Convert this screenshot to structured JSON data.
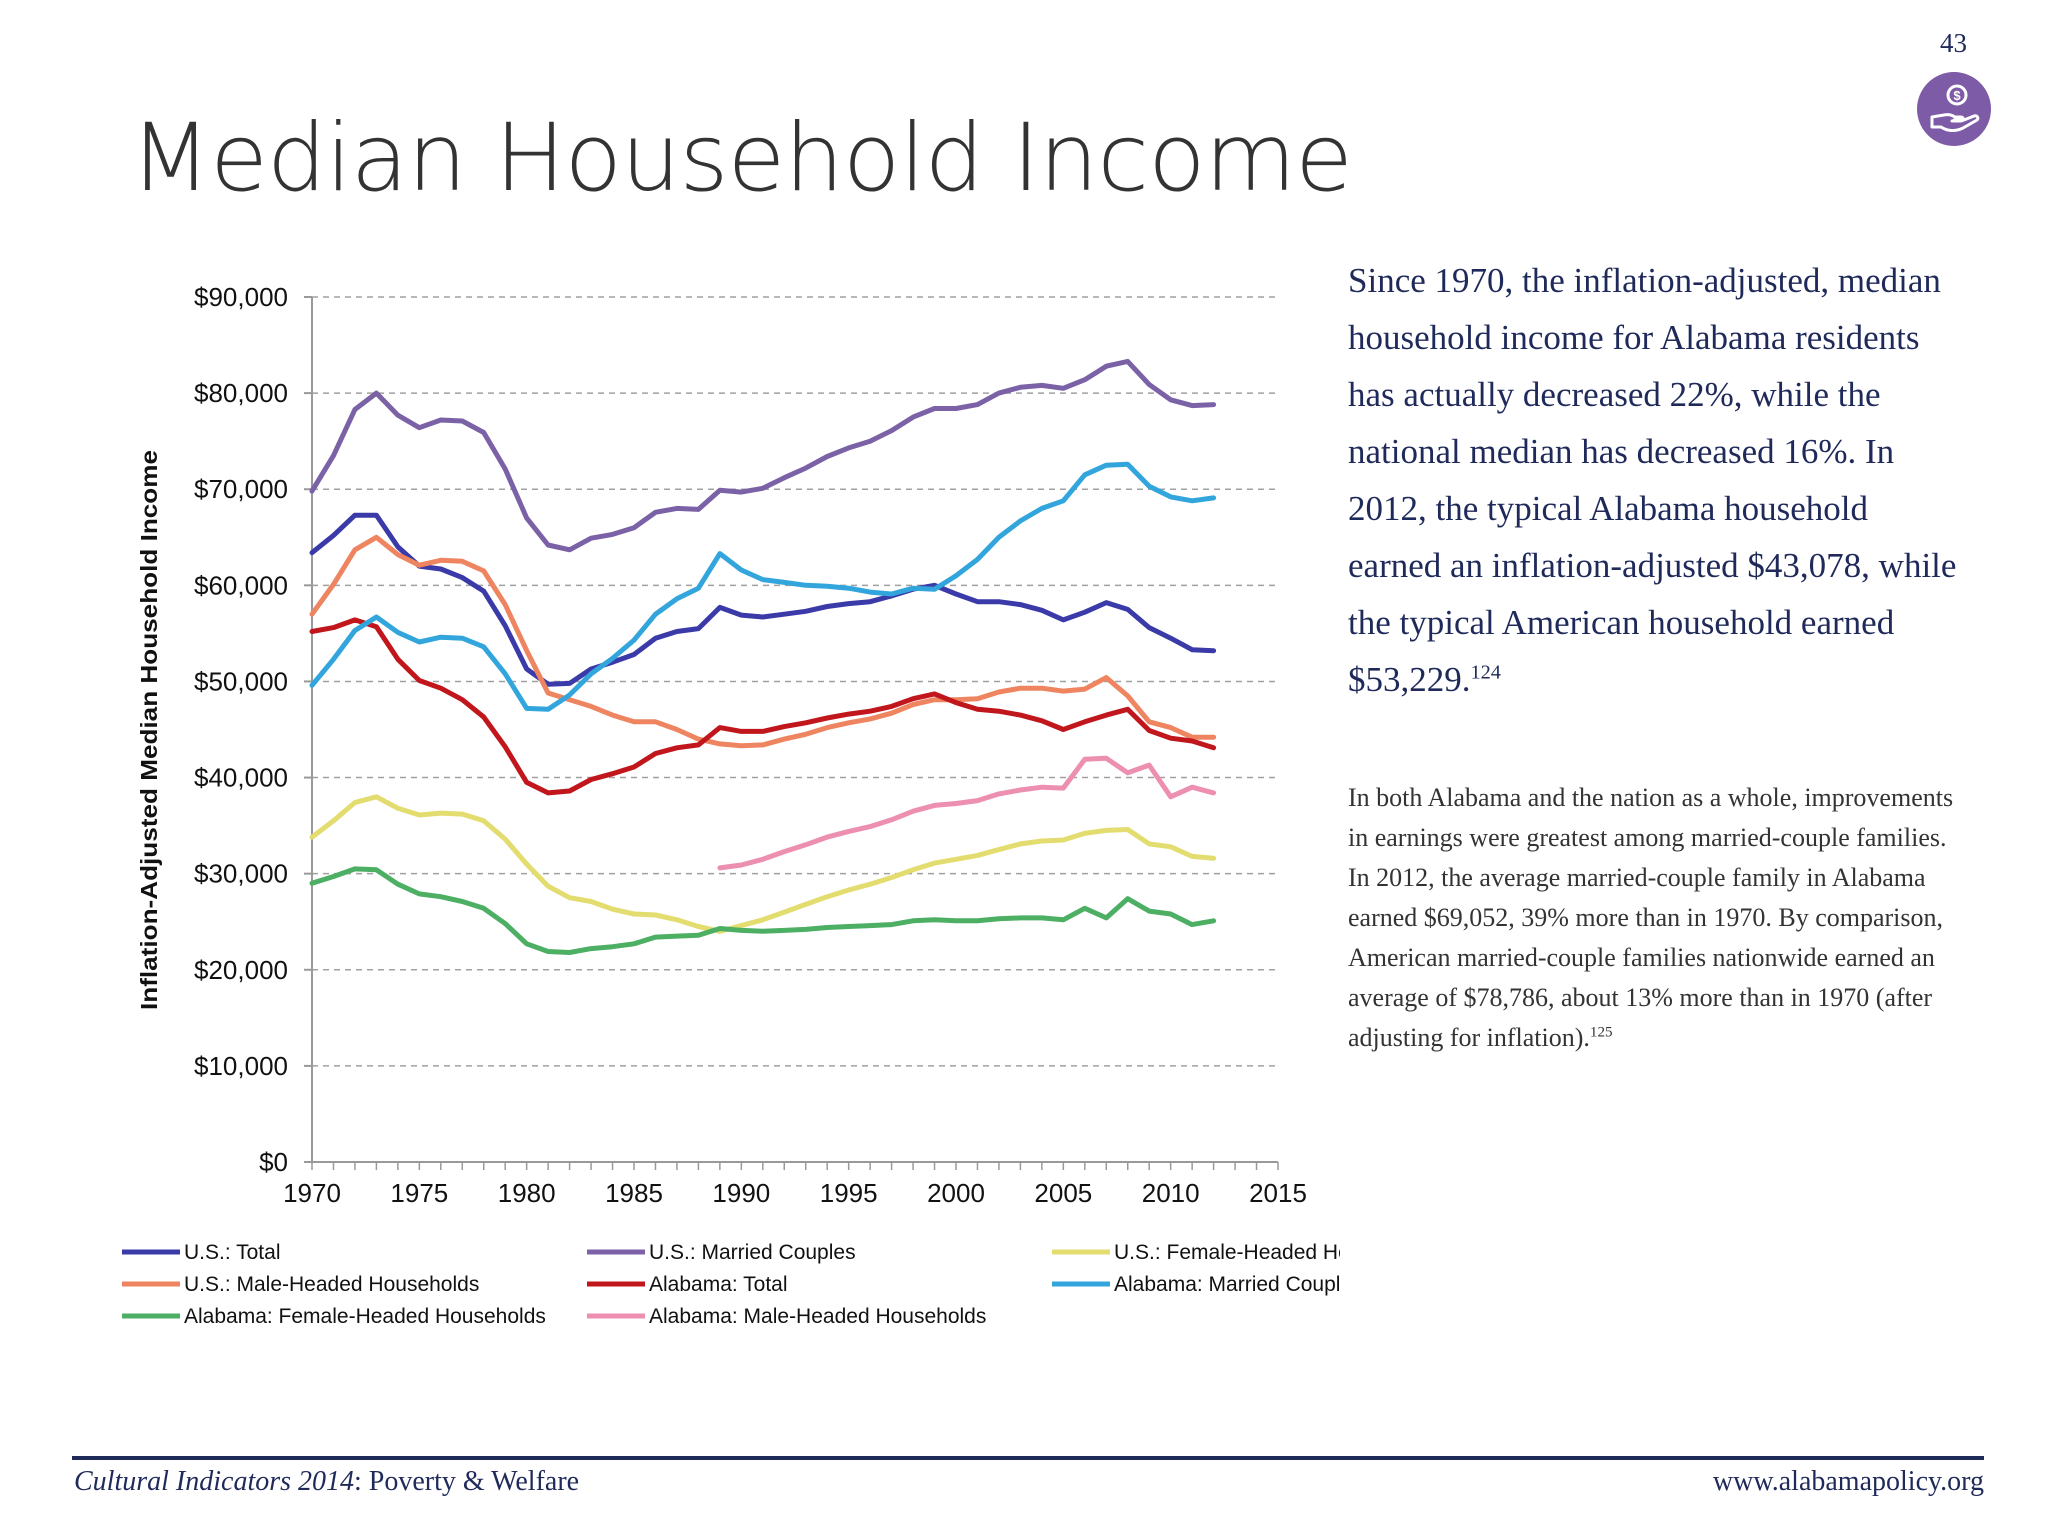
{
  "page": {
    "number": "43",
    "title": "Median Household Income",
    "badge_icon": "hand-holding-money-icon",
    "badge_color": "#7d5ba6"
  },
  "text": {
    "paragraph1": "Since 1970, the inflation-adjusted, median household income for Alabama residents has actually decreased 22%, while the national median has decreased 16%.  In 2012, the typical Alabama household earned an inflation-adjusted $43,078, while the typical American household earned $53,229.",
    "paragraph1_ref": "124",
    "paragraph2": "In both Alabama and the nation as a whole, improvements in earnings were greatest among married-couple families.  In 2012, the average married-couple family in Alabama earned $69,052, 39% more than in 1970.  By comparison, American married-couple families nationwide earned an average of $78,786, about 13% more than in 1970 (after adjusting for inflation).",
    "paragraph2_ref": "125"
  },
  "footer": {
    "publication": "Cultural Indicators 2014",
    "section": ": Poverty & Welfare",
    "website": "www.alabamapolicy.org"
  },
  "chart_data": {
    "type": "line",
    "title": "",
    "ylabel": "Inflation-Adjusted Median Household Income",
    "xlabel": "",
    "xlim": [
      1970,
      2015
    ],
    "ylim": [
      0,
      90000
    ],
    "x_ticks": [
      "1970",
      "1975",
      "1980",
      "1985",
      "1990",
      "1995",
      "2000",
      "2005",
      "2010",
      "2015"
    ],
    "y_ticks": [
      "$0",
      "$10,000",
      "$20,000",
      "$30,000",
      "$40,000",
      "$50,000",
      "$60,000",
      "$70,000",
      "$80,000",
      "$90,000"
    ],
    "grid": "horizontal dashed",
    "legend": "bottom",
    "series": [
      {
        "name": "U.S.: Total",
        "color": "#3a3aa8",
        "start_year": 1970,
        "values": [
          63400,
          65200,
          67300,
          67300,
          64000,
          62000,
          61700,
          60800,
          59400,
          55800,
          51300,
          49700,
          49800,
          51300,
          52000,
          52800,
          54500,
          55200,
          55500,
          57700,
          56900,
          56700,
          57000,
          57300,
          57800,
          58100,
          58300,
          58900,
          59600,
          60000,
          59100,
          58300,
          58300,
          58000,
          57400,
          56400,
          57200,
          58200,
          57500,
          55600,
          54500,
          53300,
          53200
        ]
      },
      {
        "name": "U.S.: Married Couples",
        "color": "#7b62a6",
        "start_year": 1970,
        "values": [
          69800,
          73500,
          78300,
          80000,
          77700,
          76400,
          77200,
          77100,
          75900,
          72100,
          67000,
          64200,
          63700,
          64900,
          65300,
          66000,
          67600,
          68000,
          67900,
          69900,
          69700,
          70100,
          71200,
          72200,
          73400,
          74300,
          75000,
          76100,
          77500,
          78400,
          78400,
          78800,
          80000,
          80600,
          80800,
          80500,
          81400,
          82800,
          83300,
          80900,
          79300,
          78700,
          78800
        ]
      },
      {
        "name": "U.S.: Female-Headed Households",
        "color": "#e3dc6f",
        "start_year": 1970,
        "values": [
          33800,
          35500,
          37400,
          38000,
          36800,
          36100,
          36300,
          36200,
          35500,
          33600,
          31000,
          28700,
          27500,
          27100,
          26300,
          25800,
          25700,
          25200,
          24500,
          24000,
          24600,
          25200,
          26000,
          26800,
          27600,
          28300,
          28900,
          29600,
          30400,
          31100,
          31500,
          31900,
          32500,
          33100,
          33400,
          33500,
          34200,
          34500,
          34600,
          33100,
          32800,
          31800,
          31600
        ]
      },
      {
        "name": "U.S.: Male-Headed Households",
        "color": "#ee8560",
        "start_year": 1970,
        "values": [
          57000,
          60100,
          63700,
          65000,
          63200,
          62100,
          62600,
          62500,
          61500,
          58000,
          53200,
          48800,
          48100,
          47400,
          46500,
          45800,
          45800,
          45000,
          44000,
          43500,
          43300,
          43400,
          44000,
          44500,
          45200,
          45700,
          46100,
          46700,
          47600,
          48100,
          48100,
          48200,
          48900,
          49300,
          49300,
          49000,
          49200,
          50400,
          48500,
          45800,
          45200,
          44200,
          44200
        ]
      },
      {
        "name": "Alabama: Total",
        "color": "#c0161c",
        "start_year": 1970,
        "values": [
          55200,
          55600,
          56400,
          55700,
          52300,
          50100,
          49300,
          48100,
          46300,
          43200,
          39500,
          38400,
          38600,
          39800,
          40400,
          41100,
          42500,
          43100,
          43400,
          45200,
          44800,
          44800,
          45300,
          45700,
          46200,
          46600,
          46900,
          47400,
          48200,
          48700,
          47800,
          47100,
          46900,
          46500,
          45900,
          45000,
          45800,
          46500,
          47100,
          44900,
          44100,
          43800,
          43100
        ]
      },
      {
        "name": "Alabama: Married Couples",
        "color": "#32a6dc",
        "start_year": 1970,
        "values": [
          49600,
          52300,
          55300,
          56700,
          55100,
          54100,
          54600,
          54500,
          53600,
          50800,
          47200,
          47100,
          48600,
          50800,
          52400,
          54300,
          57000,
          58600,
          59700,
          63300,
          61600,
          60600,
          60300,
          60000,
          59900,
          59700,
          59300,
          59100,
          59700,
          59600,
          61000,
          62700,
          65000,
          66700,
          68000,
          68800,
          71500,
          72500,
          72600,
          70300,
          69200,
          68800,
          69100
        ]
      },
      {
        "name": "Alabama: Female-Headed Households",
        "color": "#4caf63",
        "start_year": 1970,
        "values": [
          29000,
          29700,
          30500,
          30400,
          28900,
          27900,
          27600,
          27100,
          26400,
          24800,
          22700,
          21900,
          21800,
          22200,
          22400,
          22700,
          23400,
          23500,
          23600,
          24300,
          24100,
          24000,
          24100,
          24200,
          24400,
          24500,
          24600,
          24700,
          25100,
          25200,
          25100,
          25100,
          25300,
          25400,
          25400,
          25200,
          26400,
          25400,
          27400,
          26100,
          25800,
          24700,
          25100
        ]
      },
      {
        "name": "Alabama: Male-Headed Households",
        "color": "#ec8fb0",
        "start_year": 1989,
        "values": [
          30600,
          30900,
          31500,
          32300,
          33000,
          33800,
          34400,
          34900,
          35600,
          36500,
          37100,
          37300,
          37600,
          38300,
          38700,
          39000,
          38900,
          41900,
          42000,
          40500,
          41300,
          38000,
          39000,
          38400
        ]
      }
    ]
  }
}
